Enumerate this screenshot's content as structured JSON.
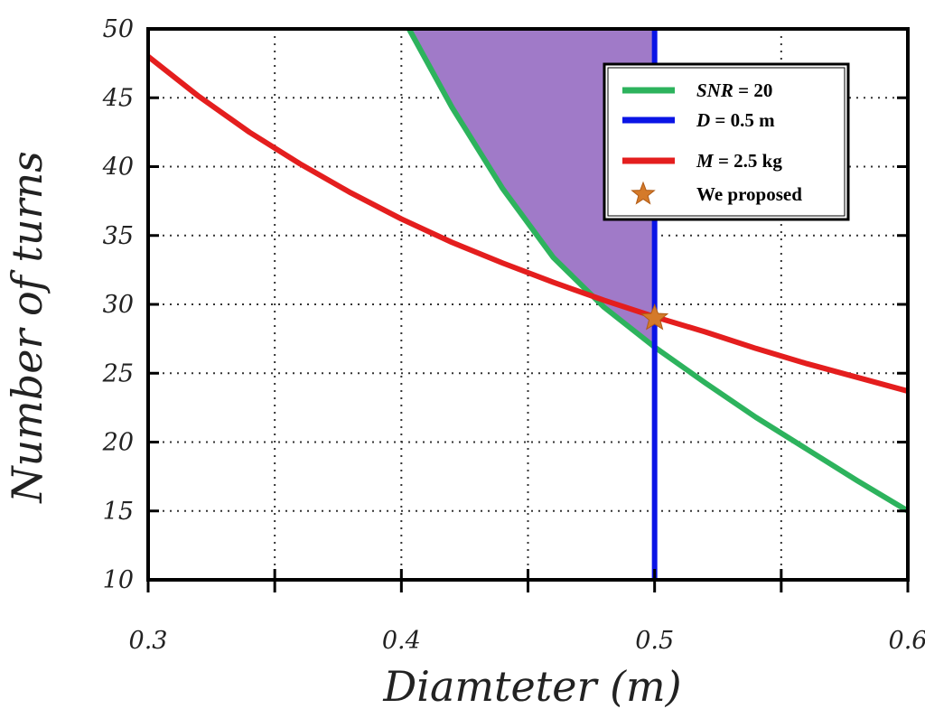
{
  "chart_data": {
    "type": "line",
    "title": "",
    "xlabel": "Diamteter (m)",
    "ylabel": "Number of turns",
    "xlim": [
      0.3,
      0.6
    ],
    "ylim": [
      10,
      50
    ],
    "xticks": [
      0.3,
      0.35,
      0.4,
      0.45,
      0.5,
      0.55,
      0.6
    ],
    "xtick_labels": [
      "0.3",
      "",
      "0.4",
      "",
      "0.5",
      "",
      "0.6"
    ],
    "yticks": [
      10,
      15,
      20,
      25,
      30,
      35,
      40,
      45,
      50
    ],
    "ytick_labels": [
      "10",
      "15",
      "20",
      "25",
      "30",
      "35",
      "40",
      "45",
      "50"
    ],
    "grid": true,
    "legend_position": "top-right",
    "series": [
      {
        "name": "SNR = 20",
        "legend_var": "SNR",
        "legend_rest": " = 20",
        "color": "#2db35d",
        "x": [
          0.403,
          0.42,
          0.44,
          0.46,
          0.48,
          0.5,
          0.52,
          0.54,
          0.56,
          0.58,
          0.6
        ],
        "y": [
          50,
          44.3,
          38.4,
          33.4,
          29.8,
          26.9,
          24.3,
          21.8,
          19.5,
          17.2,
          15.0
        ]
      },
      {
        "name": "D = 0.5 m",
        "legend_var": "D",
        "legend_rest": " = 0.5 m",
        "color": "#0a14e6",
        "x": [
          0.5,
          0.5
        ],
        "y": [
          10,
          50
        ]
      },
      {
        "name": "M = 2.5 kg",
        "legend_var": "M",
        "legend_rest": " = 2.5 kg",
        "color": "#e41e1e",
        "x": [
          0.3,
          0.32,
          0.34,
          0.36,
          0.38,
          0.4,
          0.42,
          0.44,
          0.46,
          0.48,
          0.5,
          0.52,
          0.54,
          0.56,
          0.58,
          0.6
        ],
        "y": [
          48.0,
          45.1,
          42.5,
          40.2,
          38.1,
          36.2,
          34.5,
          33.0,
          31.6,
          30.3,
          29.1,
          28.0,
          26.8,
          25.7,
          24.7,
          23.7
        ]
      }
    ],
    "feasible_region": {
      "color": "#a07ac8",
      "bounds": "between SNR = 20 curve and D = 0.5 m, above the SNR curve"
    },
    "marker": {
      "name": "We proposed",
      "x": 0.5,
      "y": 29.0,
      "symbol": "star",
      "color": "#d47a2a"
    }
  }
}
